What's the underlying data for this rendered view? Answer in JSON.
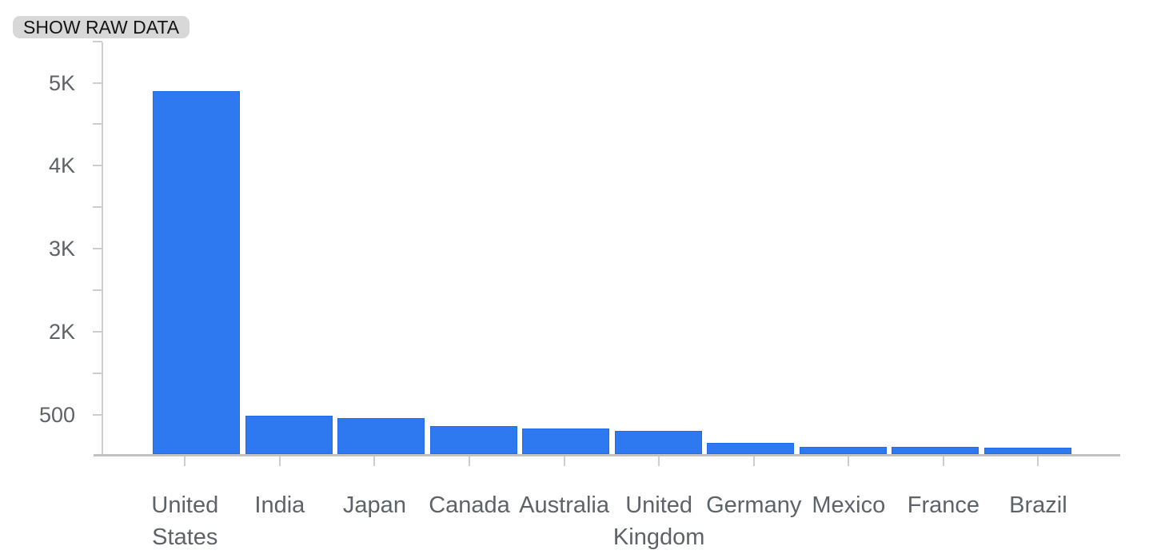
{
  "toolbar": {
    "show_raw_data_label": "SHOW RAW DATA"
  },
  "colors": {
    "bar_fill": "#2e79ef",
    "axis": "#cdcdcd",
    "baseline": "#c2c2c2",
    "label_text": "#5e6269",
    "button_bg": "#d8d8d8",
    "button_text": "#151515"
  },
  "chart_data": {
    "type": "bar",
    "title": "",
    "xlabel": "",
    "ylabel": "",
    "grid": false,
    "legend": "none",
    "categories": [
      "United States",
      "India",
      "Japan",
      "Canada",
      "Australia",
      "United Kingdom",
      "Germany",
      "Mexico",
      "France",
      "Brazil"
    ],
    "values": [
      4900,
      490,
      460,
      360,
      330,
      295,
      140,
      95,
      95,
      85
    ],
    "y_axis": {
      "tick_labels": [
        "5K",
        "4K",
        "3K",
        "2K",
        "500"
      ],
      "tick_values": [
        5000,
        4000,
        3000,
        2000,
        500
      ],
      "minor_ticks_between_majors": true,
      "range_shown": [
        0,
        5500
      ]
    }
  }
}
